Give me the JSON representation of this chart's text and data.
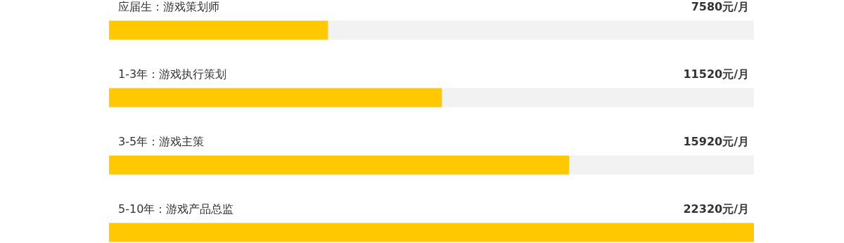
{
  "chart_data": {
    "type": "bar",
    "orientation": "horizontal",
    "categories": [
      "应届生：游戏策划师",
      "1-3年：游戏执行策划",
      "3-5年：游戏主策",
      "5-10年：游戏产品总监"
    ],
    "values": [
      7580,
      11520,
      15920,
      22320
    ],
    "value_labels": [
      "7580元/月",
      "11520元/月",
      "15920元/月",
      "22320元/月"
    ],
    "color": "#ffc800"
  }
}
